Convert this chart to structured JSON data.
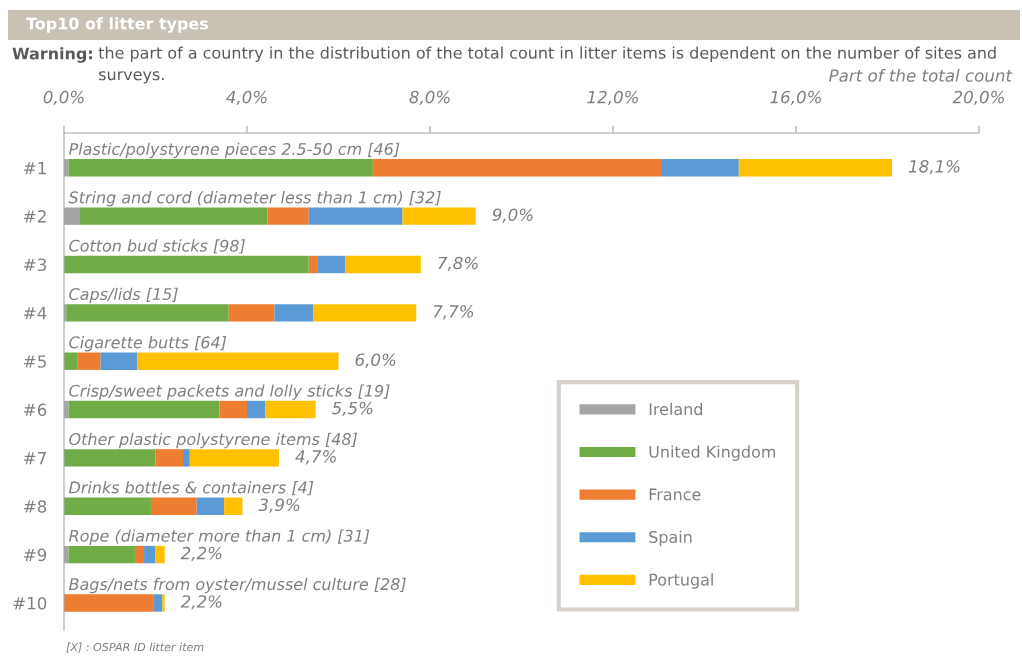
{
  "chart_data": {
    "type": "bar",
    "orientation": "horizontal",
    "stacked": true,
    "title": "Top10 of litter types",
    "subtitle": "Warning: the part of a country in the distribution of the total count in litter items is dependent on the number of sites and surveys.",
    "xlabel": "Part of the total count",
    "categories": [
      "#1",
      "#2",
      "#3",
      "#4",
      "#5",
      "#6",
      "#7",
      "#8",
      "#9",
      "#10"
    ],
    "series": [
      {
        "name": "Ireland",
        "color": "#a5a5a5",
        "values": [
          0.1,
          0.35,
          0,
          0.05,
          0,
          0.1,
          0,
          0,
          0.1,
          0
        ]
      },
      {
        "name": "United Kingdom",
        "color": "#70ad47",
        "values": [
          6.65,
          4.1,
          5.35,
          3.55,
          0.3,
          3.3,
          2.0,
          1.9,
          1.45,
          0
        ]
      },
      {
        "name": "France",
        "color": "#ed7d31",
        "values": [
          6.3,
          0.9,
          0.2,
          1.0,
          0.5,
          0.6,
          0.6,
          1.0,
          0.2,
          1.95
        ]
      },
      {
        "name": "Spain",
        "color": "#5b9bd5",
        "values": [
          1.7,
          2.05,
          0.6,
          0.85,
          0.8,
          0.4,
          0.15,
          0.6,
          0.25,
          0.2
        ]
      },
      {
        "name": "Portugal",
        "color": "#ffc000",
        "values": [
          3.35,
          1.6,
          1.65,
          2.25,
          4.4,
          1.1,
          1.95,
          0.4,
          0.2,
          0.05
        ]
      }
    ],
    "totals": [
      "18,1%",
      "9,0%",
      "7,8%",
      "7,7%",
      "6,0%",
      "5,5%",
      "4,7%",
      "3,9%",
      "2,2%",
      "2,2%"
    ],
    "xlim": [
      0,
      20
    ],
    "xticks": [
      {
        "value": 0,
        "label": "0,0%"
      },
      {
        "value": 4,
        "label": "4,0%"
      },
      {
        "value": 8,
        "label": "8,0%"
      },
      {
        "value": 12,
        "label": "12,0%"
      },
      {
        "value": 16,
        "label": "16,0%"
      },
      {
        "value": 20,
        "label": "20,0%"
      }
    ],
    "annotations": [
      "Plastic/polystyrene pieces 2.5-50 cm [46]",
      "String and cord (diameter less than 1 cm) [32]",
      "Cotton bud sticks [98]",
      "Caps/lids [15]",
      "Cigarette butts [64]",
      "Crisp/sweet packets and lolly sticks [19]",
      "Other plastic polystyrene items [48]",
      "Drinks bottles & containers [4]",
      "Rope (diameter more than 1 cm) [31]",
      "Bags/nets from oyster/mussel culture [28]",
      "[X] : OSPAR ID litter item"
    ],
    "grid": false,
    "legend": "right"
  }
}
